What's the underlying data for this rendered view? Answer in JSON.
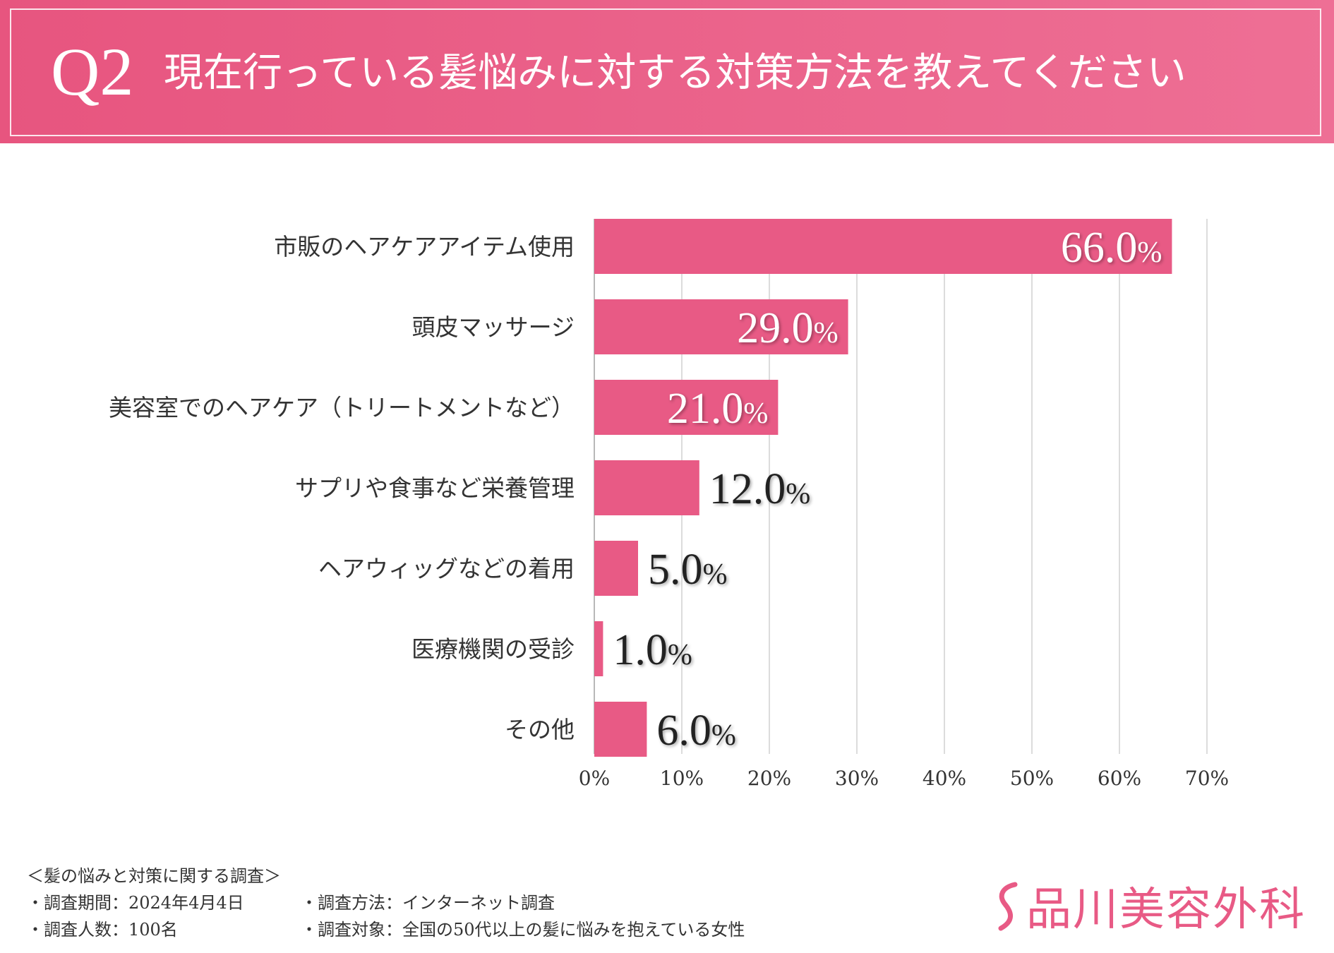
{
  "header": {
    "question_number": "Q2",
    "title": "現在行っている髪悩みに対する対策方法を教えてください"
  },
  "chart_data": {
    "type": "bar",
    "orientation": "horizontal",
    "categories": [
      "市販のヘアケアアイテム使用",
      "頭皮マッサージ",
      "美容室でのヘアケア（トリートメントなど）",
      "サプリや食事など栄養管理",
      "ヘアウィッグなどの着用",
      "医療機関の受診",
      "その他"
    ],
    "values": [
      66.0,
      29.0,
      21.0,
      12.0,
      5.0,
      1.0,
      6.0
    ],
    "value_labels": [
      "66.0",
      "29.0",
      "21.0",
      "12.0",
      "5.0",
      "1.0",
      "6.0"
    ],
    "value_unit": "%",
    "xlim": [
      0,
      70
    ],
    "ticks": [
      0,
      10,
      20,
      30,
      40,
      50,
      60,
      70
    ],
    "tick_labels": [
      "0%",
      "10%",
      "20%",
      "30%",
      "40%",
      "50%",
      "60%",
      "70%"
    ],
    "grid": true,
    "bar_color": "#e85a85",
    "label_inside_color": "#ffffff",
    "label_outside_color": "#222222"
  },
  "footer": {
    "survey_title": "＜髪の悩みと対策に関する調査＞",
    "period": "・調査期間：2024年4月4日",
    "method": "・調査方法：インターネット調査",
    "respondents": "・調査人数：100名",
    "target": "・調査対象：全国の50代以上の髪に悩みを抱えている女性"
  },
  "logo": {
    "text": "品川美容外科",
    "color": "#e85a85"
  }
}
